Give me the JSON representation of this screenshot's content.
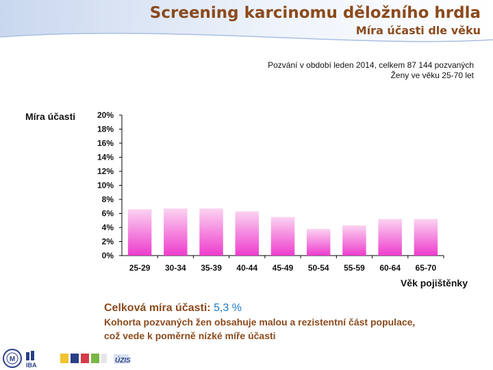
{
  "header": {
    "title": "Screening karcinomu děložního hrdla",
    "subtitle": "Míra účasti dle věku"
  },
  "notes": {
    "line1": "Pozvání v období leden 2014, celkem 87 144 pozvaných",
    "line2": "Ženy ve věku 25-70 let"
  },
  "summary": {
    "label": "Celková míra účasti:",
    "value": "5,3 %",
    "line1": "Kohorta pozvaných žen obsahuje malou a rezistentní část populace,",
    "line2": "což vede k poměrně nízké míře účasti"
  },
  "logos": {
    "iba": "IBA",
    "uzis": "ÚZIS"
  },
  "colors": {
    "title": "#8b4a1c",
    "accent": "#1e7ac8",
    "bar_top": "#fbd3f1",
    "bar_bottom": "#ee3ccd"
  },
  "chart_data": {
    "type": "bar",
    "categories": [
      "25-29",
      "30-34",
      "35-39",
      "40-44",
      "45-49",
      "50-54",
      "55-59",
      "60-64",
      "65-70"
    ],
    "values": [
      6.6,
      6.7,
      6.7,
      6.3,
      5.5,
      3.8,
      4.3,
      5.2,
      5.2
    ],
    "ylabel": "Míra účasti",
    "xlabel": "Věk pojištěnky",
    "ylim": [
      0,
      20
    ],
    "yticks": [
      "0%",
      "2%",
      "4%",
      "6%",
      "8%",
      "10%",
      "12%",
      "14%",
      "16%",
      "18%",
      "20%"
    ],
    "grid": false,
    "legend": false
  }
}
